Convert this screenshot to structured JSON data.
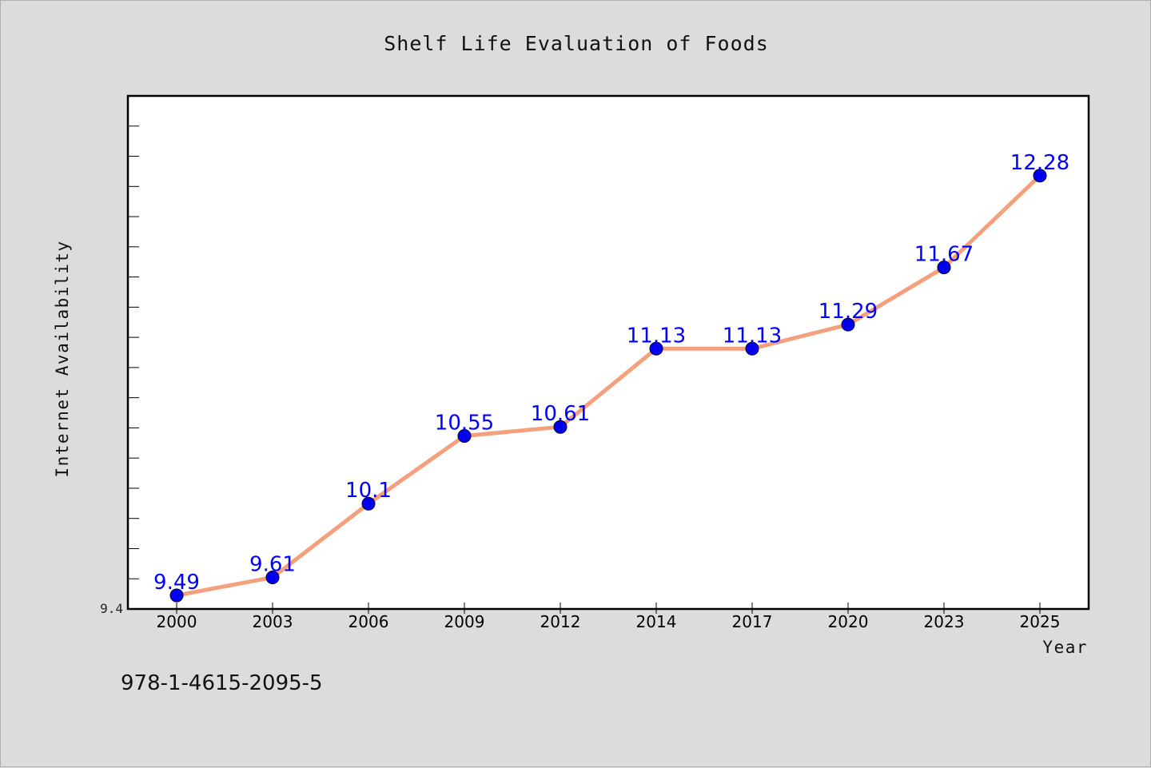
{
  "chart_data": {
    "type": "line",
    "title": "Shelf Life Evaluation of Foods",
    "xlabel": "Year",
    "ylabel": "Internet Availability",
    "categories": [
      "2000",
      "2003",
      "2006",
      "2009",
      "2012",
      "2014",
      "2017",
      "2020",
      "2023",
      "2025"
    ],
    "series": [
      {
        "values": [
          9.49,
          9.61,
          10.1,
          10.55,
          10.61,
          11.13,
          11.13,
          11.29,
          11.67,
          12.28
        ],
        "labels": [
          "9.49",
          "9.61",
          "10.1",
          "10.55",
          "10.61",
          "11.13",
          "11.13",
          "11.29",
          "11.67",
          "12.28"
        ],
        "line_color": "#f4a07c",
        "marker_color": "#0000ee",
        "label_color": "#0000ff"
      }
    ],
    "y_tick_labels": [
      "9.4"
    ],
    "ylim": [
      9.4,
      12.81
    ],
    "grid": false,
    "legend": "none"
  },
  "footer_text": "978-1-4615-2095-5",
  "colors": {
    "background": "#dcdcdc",
    "plot_background": "#ffffff",
    "axis": "#000000"
  }
}
